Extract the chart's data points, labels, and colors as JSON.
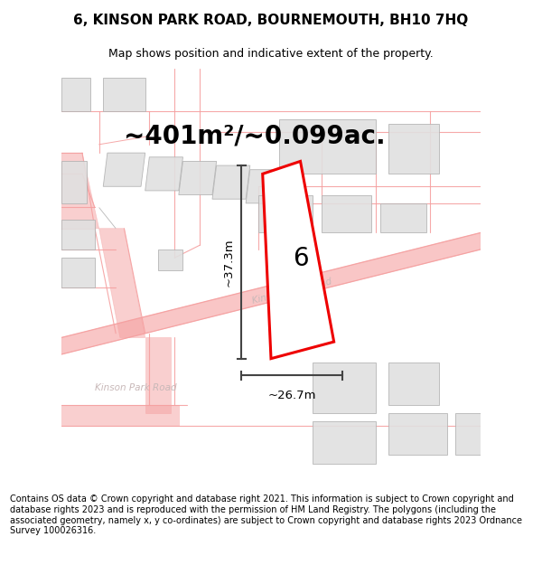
{
  "title": "6, KINSON PARK ROAD, BOURNEMOUTH, BH10 7HQ",
  "subtitle": "Map shows position and indicative extent of the property.",
  "area_text": "~401m²/~0.099ac.",
  "dim_width": "~26.7m",
  "dim_height": "~37.3m",
  "house_number": "6",
  "footer_text": "Contains OS data © Crown copyright and database right 2021. This information is subject to Crown copyright and database rights 2023 and is reproduced with the permission of HM Land Registry. The polygons (including the associated geometry, namely x, y co-ordinates) are subject to Crown copyright and database rights 2023 Ordnance Survey 100026316.",
  "bg_color": "#ffffff",
  "map_bg": "#ffffff",
  "road_color": "#f5a0a0",
  "building_color": "#e0e0e0",
  "building_edge": "#b0b0b0",
  "highlight_color": "#ee0000",
  "highlight_fill": "#ffffff",
  "road_label_color": "#c8b8b8",
  "dim_color": "#444444",
  "title_fontsize": 11,
  "subtitle_fontsize": 9,
  "area_fontsize": 20,
  "number_fontsize": 20,
  "footer_fontsize": 7.0
}
